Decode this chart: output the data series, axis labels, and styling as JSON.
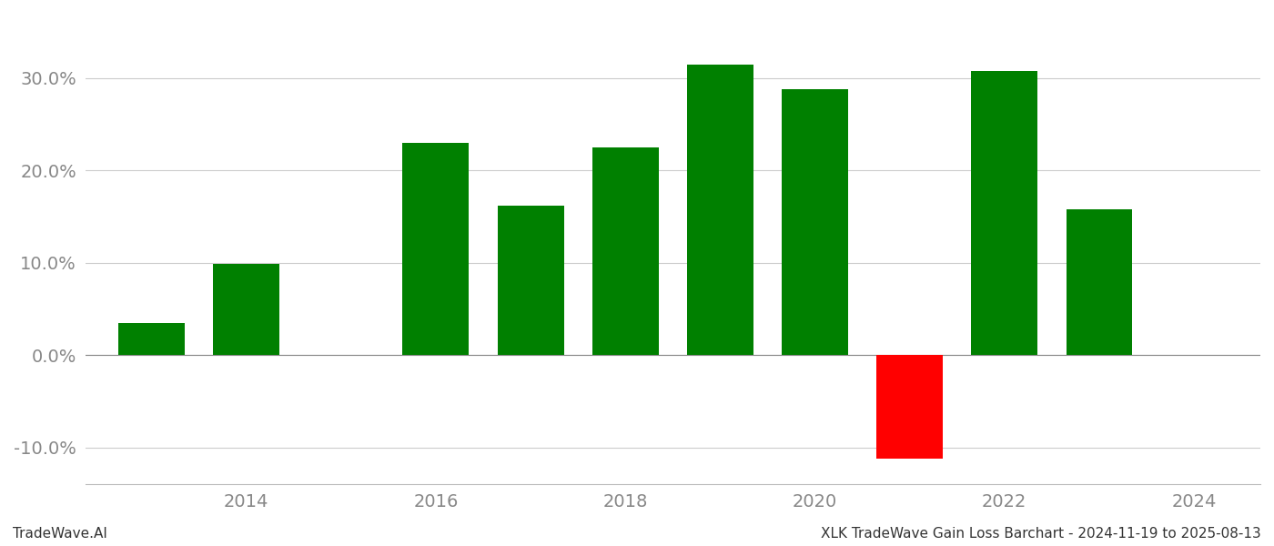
{
  "years": [
    2013,
    2014,
    2016,
    2017,
    2018,
    2019,
    2020,
    2021,
    2022,
    2023
  ],
  "values": [
    3.5,
    9.9,
    23.0,
    16.2,
    22.5,
    31.5,
    28.8,
    -11.2,
    30.8,
    15.8
  ],
  "colors": [
    "#008000",
    "#008000",
    "#008000",
    "#008000",
    "#008000",
    "#008000",
    "#008000",
    "#ff0000",
    "#008000",
    "#008000"
  ],
  "bar_width": 0.7,
  "ylim_min": -14,
  "ylim_max": 37,
  "yticks": [
    -10,
    0,
    10,
    20,
    30
  ],
  "xticks": [
    2014,
    2016,
    2018,
    2020,
    2022,
    2024
  ],
  "xlim_min": 2012.3,
  "xlim_max": 2024.7,
  "footer_left": "TradeWave.AI",
  "footer_right": "XLK TradeWave Gain Loss Barchart - 2024-11-19 to 2025-08-13",
  "footer_fontsize": 11,
  "tick_fontsize": 14,
  "grid_color": "#cccccc",
  "background_color": "#ffffff"
}
